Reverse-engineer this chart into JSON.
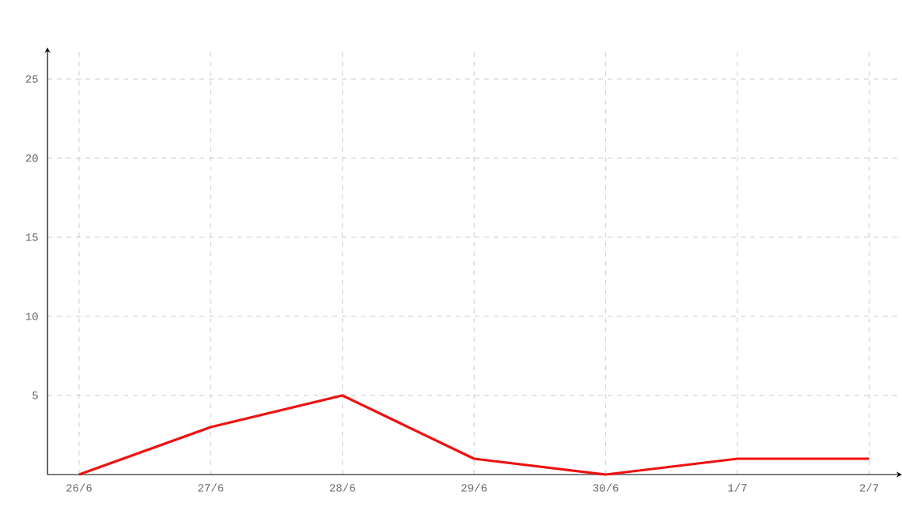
{
  "chart_data": {
    "type": "line",
    "categories": [
      "26/6",
      "27/6",
      "28/6",
      "29/6",
      "30/6",
      "1/7",
      "2/7"
    ],
    "series": [
      {
        "color": "#ee1111",
        "values": [
          0,
          3,
          5,
          1,
          0,
          1,
          1
        ]
      }
    ],
    "ylim": [
      0,
      27
    ],
    "yticks": [
      5,
      10,
      15,
      20,
      25
    ],
    "grid": true,
    "line_style": "solid"
  }
}
